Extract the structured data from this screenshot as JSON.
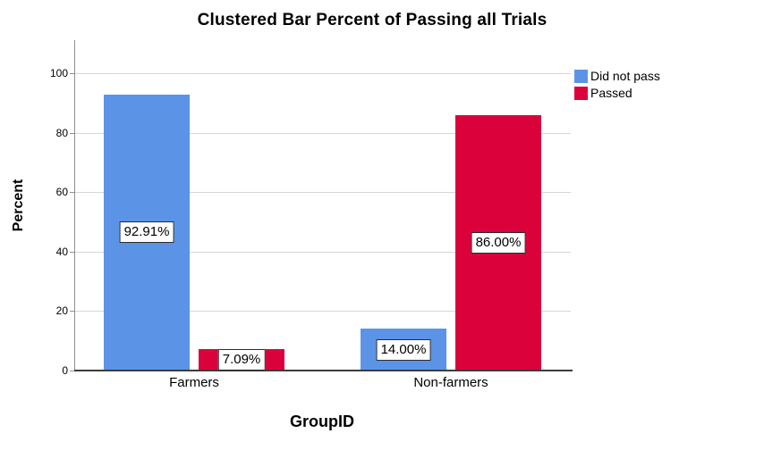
{
  "chart_data": {
    "type": "bar",
    "title": "Clustered Bar Percent of Passing all Trials",
    "xlabel": "GroupID",
    "ylabel": "Percent",
    "categories": [
      "Farmers",
      "Non-farmers"
    ],
    "series": [
      {
        "name": "Did not pass",
        "color": "#5B94E6",
        "values": [
          92.91,
          14.0
        ],
        "labels": [
          "92.91%",
          "14.00%"
        ]
      },
      {
        "name": "Passed",
        "color": "#DB023C",
        "values": [
          7.09,
          86.0
        ],
        "labels": [
          "7.09%",
          "86.00%"
        ]
      }
    ],
    "ylim": [
      0,
      100
    ],
    "yticks": [
      0,
      20,
      40,
      60,
      80,
      100
    ],
    "grid": "horizontal",
    "legend_position": "top-right",
    "background_color": "#FFFFFF",
    "data_label_style": "boxed-white-black-border"
  }
}
